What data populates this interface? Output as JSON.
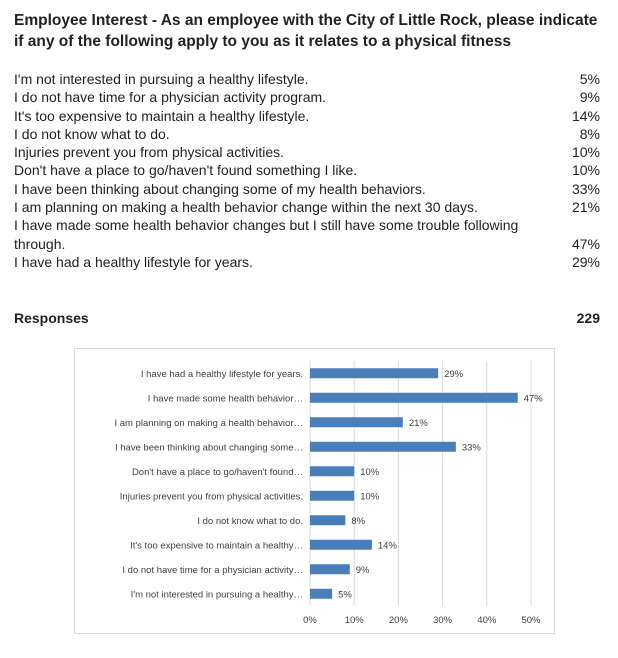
{
  "title": "Employee Interest - As an employee with the City of Little Rock, please indicate if any of the following apply to you as it relates to a physical fitness",
  "rows": [
    {
      "label": "I'm not interested in pursuing a healthy lifestyle.",
      "pct": "5%"
    },
    {
      "label": "I do not have time for a physician activity program.",
      "pct": "9%"
    },
    {
      "label": "It's too expensive to maintain a healthy lifestyle.",
      "pct": "14%"
    },
    {
      "label": "I do not know what to do.",
      "pct": "8%"
    },
    {
      "label": "Injuries prevent you from physical activities.",
      "pct": "10%"
    },
    {
      "label": "Don't have a place to go/haven't found something I like.",
      "pct": "10%"
    },
    {
      "label": "I have been thinking about changing some of my health behaviors.",
      "pct": "33%"
    },
    {
      "label": "I am planning on making a health behavior change within the next 30 days.",
      "pct": "21%"
    },
    {
      "label": "I have made some health behavior changes but I still have some trouble following through.",
      "pct": "47%"
    },
    {
      "label": "I have had a healthy lifestyle for years.",
      "pct": "29%"
    }
  ],
  "responses": {
    "label": "Responses",
    "value": "229"
  },
  "chart_data": {
    "type": "bar",
    "orientation": "horizontal",
    "categories": [
      "I have had a healthy lifestyle for years.",
      "I have made some health behavior…",
      "I am planning on making a health behavior…",
      "I have been thinking about changing some…",
      "Don't have a place to go/haven't found…",
      "Injuries prevent you from physical activities.",
      "I do not know what to do.",
      "It's too expensive to maintain a healthy…",
      "I do not have time for a physician activity…",
      "I'm not interested in pursuing a healthy…"
    ],
    "values": [
      29,
      47,
      21,
      33,
      10,
      10,
      8,
      14,
      9,
      5
    ],
    "data_labels": [
      "29%",
      "47%",
      "21%",
      "33%",
      "10%",
      "10%",
      "8%",
      "14%",
      "9%",
      "5%"
    ],
    "xlim": [
      0,
      50
    ],
    "x_ticks": [
      "0%",
      "10%",
      "20%",
      "30%",
      "40%",
      "50%"
    ],
    "grid": true,
    "bar_color": "#4a7ebb",
    "grid_color": "#d9d9d9"
  }
}
